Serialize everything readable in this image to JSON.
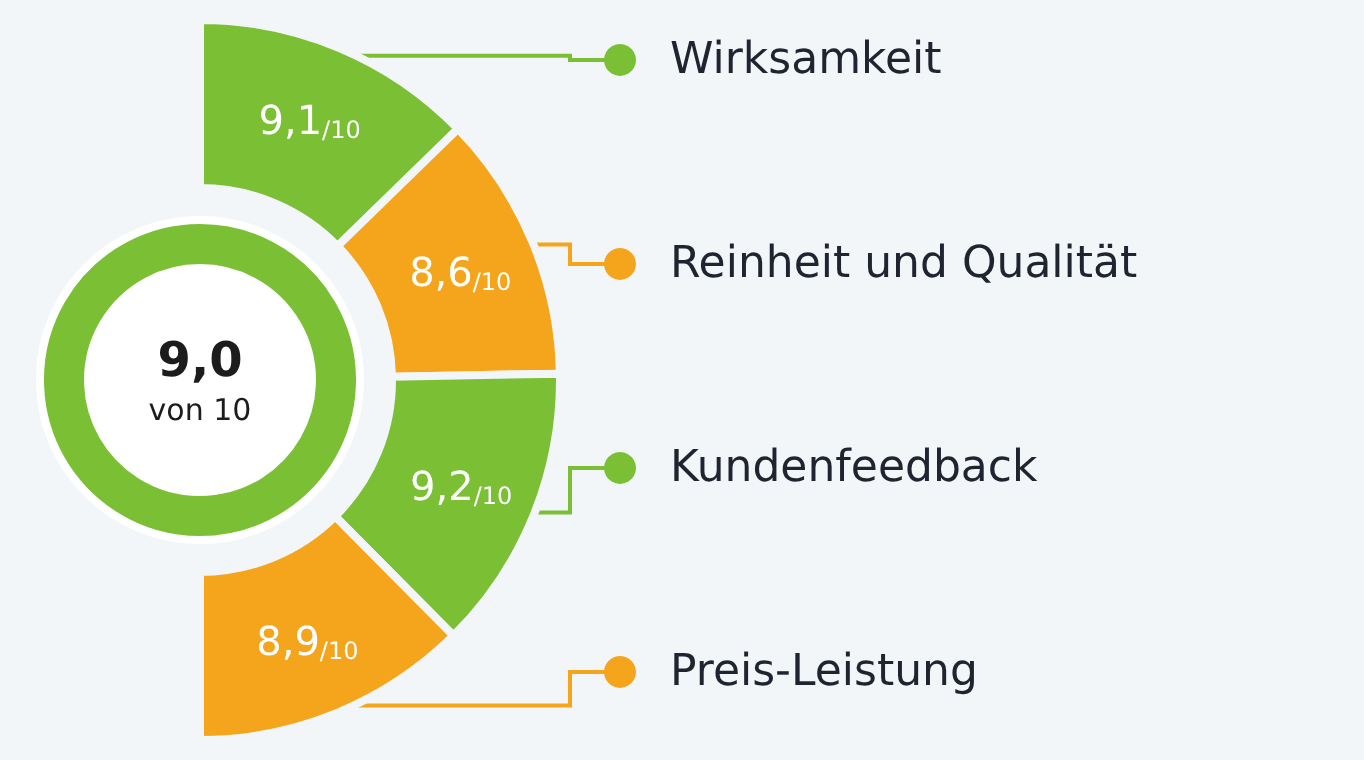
{
  "chart_data": {
    "type": "other",
    "title": "9,0",
    "subtitle": "von 10",
    "categories": [
      "Wirksamkeit",
      "Reinheit und Qualität",
      "Kundenfeedback",
      "Preis-Leistung"
    ],
    "values": [
      9.1,
      8.6,
      9.2,
      8.9
    ],
    "value_labels": [
      "9,1$_{/10}$",
      "8,6$_{/10}$",
      "9,2$_{/10}$",
      "8,9$_{/10}$"
    ],
    "colors": [
      "#7bbf35",
      "#f4a51c",
      "#7bbf35",
      "#f4a51c"
    ]
  }
}
